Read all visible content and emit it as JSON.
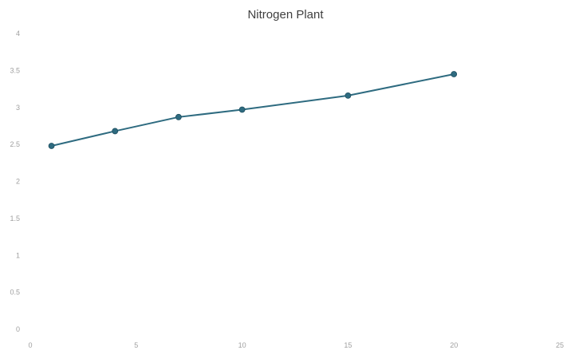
{
  "chart_data": {
    "type": "scatter",
    "title": "Nitrogen Plant",
    "xlabel": "",
    "ylabel": "",
    "xlim": [
      0,
      25
    ],
    "ylim": [
      0,
      4
    ],
    "x_ticks": [
      "0",
      "5",
      "10",
      "15",
      "20",
      "25"
    ],
    "y_ticks": [
      "0",
      "0.5",
      "1",
      "1.5",
      "2",
      "2.5",
      "3",
      "3.5",
      "4"
    ],
    "grid": false,
    "legend": "none",
    "series": [
      {
        "x": [
          1,
          4,
          7,
          10,
          15,
          20
        ],
        "y": [
          2.48,
          2.68,
          2.87,
          2.97,
          3.16,
          3.45
        ],
        "line": true,
        "markers": true
      }
    ],
    "colors": {
      "series": "#2e6b80",
      "marker": "#2e6b80",
      "title": "#404040",
      "ticks": "#a0a0a0"
    }
  }
}
